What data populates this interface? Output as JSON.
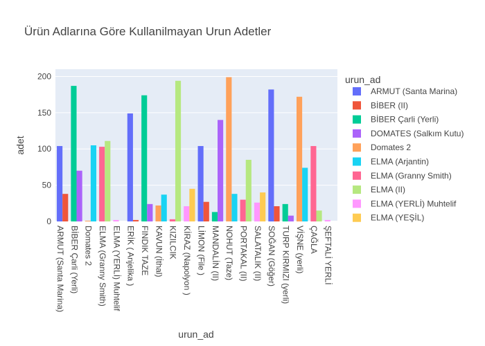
{
  "chart_data": {
    "type": "bar",
    "title": "Ürün Adlarına Göre Kullanilmayan Urun Adetler",
    "xlabel": "urun_ad",
    "ylabel": "adet",
    "ylim": [
      0,
      210
    ],
    "yticks": [
      0,
      50,
      100,
      150,
      200
    ],
    "grid": true,
    "legend_title": "urun_ad",
    "legend_position": "right",
    "barmode": "group",
    "x_tick_labels": [
      "ARMUT (Santa Marina)",
      "BİBER Çarli (Yerli)",
      "Domates 2",
      "ELMA (Granny Smith)",
      "ELMA (YERLİ) Muhtelif",
      "ERİK ( Anjelika )",
      "FINDIK TAZE",
      "KAVUN (İthal)",
      "KIZILCIK",
      "KİRAZ (Napolyon )",
      "LİMON (File )",
      "MANDALİN (II)",
      "NOHUT (Taze)",
      "PORTAKAL (II)",
      "SALATALIK (II)",
      "SOĞAN (Göğer)",
      "TURP KIRMIZI (yerli)",
      "VİŞNE (yerli)",
      "ÇAĞLA",
      "ŞEFTALİ YERLİ"
    ],
    "series": [
      {
        "name": "ARMUT (Santa Marina)",
        "color": "#636efa",
        "category_index": 0,
        "value": 104
      },
      {
        "name": "BİBER (II)",
        "color": "#EF553B",
        "category_index": 0,
        "value": 38
      },
      {
        "name": "BİBER Çarli (Yerli)",
        "color": "#00cc96",
        "category_index": 1,
        "value": 187
      },
      {
        "name": "DOMATES (Salkım Kutu)",
        "color": "#ab63fa",
        "category_index": 1,
        "value": 70
      },
      {
        "name": "Domates 2",
        "color": "#FFA15A",
        "category_index": 2,
        "value": 1
      },
      {
        "name": "ELMA (Arjantin)",
        "color": "#19d3f3",
        "category_index": 2,
        "value": 105
      },
      {
        "name": "ELMA (Granny Smith)",
        "color": "#FF6692",
        "category_index": 3,
        "value": 103
      },
      {
        "name": "ELMA (II)",
        "color": "#B6E880",
        "category_index": 3,
        "value": 111
      },
      {
        "name": "ELMA (YERLİ) Muhtelif",
        "color": "#FF97FF",
        "category_index": 4,
        "value": 2
      },
      {
        "name": "ELMA (YEŞİL)",
        "color": "#FECB52",
        "category_index": 4,
        "value": 0
      },
      {
        "name": "ERİK ( Anjelika )",
        "color": "#636efa",
        "category_index": 5,
        "value": 149
      },
      {
        "name": "",
        "color": "#EF553B",
        "category_index": 5,
        "value": 2
      },
      {
        "name": "FINDIK TAZE",
        "color": "#00cc96",
        "category_index": 6,
        "value": 174
      },
      {
        "name": "",
        "color": "#ab63fa",
        "category_index": 6,
        "value": 24
      },
      {
        "name": "KAVUN (İthal)",
        "color": "#FFA15A",
        "category_index": 7,
        "value": 22
      },
      {
        "name": "",
        "color": "#19d3f3",
        "category_index": 7,
        "value": 37
      },
      {
        "name": "KIZILCIK",
        "color": "#FF6692",
        "category_index": 8,
        "value": 3
      },
      {
        "name": "",
        "color": "#B6E880",
        "category_index": 8,
        "value": 194
      },
      {
        "name": "KİRAZ (Napolyon )",
        "color": "#FF97FF",
        "category_index": 9,
        "value": 21
      },
      {
        "name": "",
        "color": "#FECB52",
        "category_index": 9,
        "value": 45
      },
      {
        "name": "LİMON (File )",
        "color": "#636efa",
        "category_index": 10,
        "value": 104
      },
      {
        "name": "",
        "color": "#EF553B",
        "category_index": 10,
        "value": 27
      },
      {
        "name": "MANDALİN (II)",
        "color": "#00cc96",
        "category_index": 11,
        "value": 13
      },
      {
        "name": "",
        "color": "#ab63fa",
        "category_index": 11,
        "value": 140
      },
      {
        "name": "NOHUT (Taze)",
        "color": "#FFA15A",
        "category_index": 12,
        "value": 199
      },
      {
        "name": "",
        "color": "#19d3f3",
        "category_index": 12,
        "value": 38
      },
      {
        "name": "PORTAKAL (II)",
        "color": "#FF6692",
        "category_index": 13,
        "value": 30
      },
      {
        "name": "",
        "color": "#B6E880",
        "category_index": 13,
        "value": 85
      },
      {
        "name": "SALATALIK (II)",
        "color": "#FF97FF",
        "category_index": 14,
        "value": 26
      },
      {
        "name": "",
        "color": "#FECB52",
        "category_index": 14,
        "value": 40
      },
      {
        "name": "SOĞAN (Göğer)",
        "color": "#636efa",
        "category_index": 15,
        "value": 182
      },
      {
        "name": "",
        "color": "#EF553B",
        "category_index": 15,
        "value": 21
      },
      {
        "name": "TURP KIRMIZI (yerli)",
        "color": "#00cc96",
        "category_index": 16,
        "value": 24
      },
      {
        "name": "",
        "color": "#ab63fa",
        "category_index": 16,
        "value": 8
      },
      {
        "name": "VİŞNE (yerli)",
        "color": "#FFA15A",
        "category_index": 17,
        "value": 172
      },
      {
        "name": "",
        "color": "#19d3f3",
        "category_index": 17,
        "value": 74
      },
      {
        "name": "ÇAĞLA",
        "color": "#FF6692",
        "category_index": 18,
        "value": 104
      },
      {
        "name": "",
        "color": "#B6E880",
        "category_index": 18,
        "value": 15
      },
      {
        "name": "ŞEFTALİ YERLİ",
        "color": "#FF97FF",
        "category_index": 19,
        "value": 2
      }
    ],
    "legend_items": [
      {
        "label": "ARMUT (Santa Marina)",
        "color": "#636efa"
      },
      {
        "label": "BİBER (II)",
        "color": "#EF553B"
      },
      {
        "label": "BİBER Çarli (Yerli)",
        "color": "#00cc96"
      },
      {
        "label": "DOMATES (Salkım Kutu)",
        "color": "#ab63fa"
      },
      {
        "label": "Domates 2",
        "color": "#FFA15A"
      },
      {
        "label": "ELMA (Arjantin)",
        "color": "#19d3f3"
      },
      {
        "label": "ELMA (Granny Smith)",
        "color": "#FF6692"
      },
      {
        "label": "ELMA (II)",
        "color": "#B6E880"
      },
      {
        "label": "ELMA (YERLİ) Muhtelif",
        "color": "#FF97FF"
      },
      {
        "label": "ELMA (YEŞİL)",
        "color": "#FECB52"
      }
    ],
    "colors": {
      "plot_bg": "#e5ecf6",
      "grid": "#ffffff",
      "text": "#444444"
    }
  }
}
